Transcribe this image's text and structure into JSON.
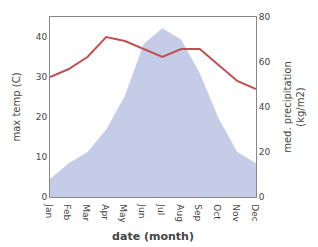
{
  "chart_data": {
    "type": "line",
    "categories": [
      "Jan",
      "Feb",
      "Mar",
      "Apr",
      "May",
      "Jun",
      "Jul",
      "Aug",
      "Sep",
      "Oct",
      "Nov",
      "Dec"
    ],
    "series": [
      {
        "type": "area",
        "axis": "y2",
        "color": "#c5cce8",
        "values": [
          8,
          15,
          20,
          30,
          45,
          68,
          75,
          70,
          55,
          35,
          20,
          15
        ]
      },
      {
        "type": "line",
        "color": "#c0504d",
        "values": [
          30,
          32,
          35,
          40,
          39,
          37,
          35,
          37,
          37,
          33,
          29,
          27
        ]
      }
    ],
    "xlabel": "date (month)",
    "ylabel": "max temp (C)",
    "y2label": "med. precipitation\n(kg/m2)",
    "ylim": [
      0,
      45
    ],
    "yticks": [
      0,
      10,
      20,
      30,
      40
    ],
    "y2lim": [
      0,
      80
    ],
    "y2ticks": [
      0,
      20,
      40,
      60,
      80
    ],
    "grid": false
  }
}
